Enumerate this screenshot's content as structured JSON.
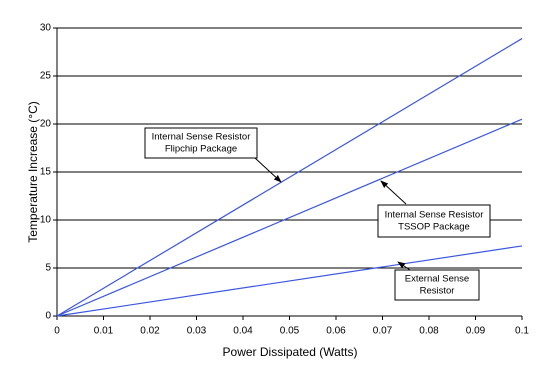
{
  "chart_data": {
    "type": "line",
    "x_label": "Power Dissipated (Watts)",
    "y_label": "Temperature Increase (°C)",
    "x": [
      0,
      0.1
    ],
    "series": [
      {
        "name": "Internal Sense Resistor Flipchip Package",
        "color": "#3a56e0",
        "values": [
          0,
          28.9
        ]
      },
      {
        "name": "Internal Sense Resistor TSSOP Package",
        "color": "#3a56e0",
        "values": [
          0,
          20.5
        ]
      },
      {
        "name": "External Sense Resistor",
        "color": "#3a56e0",
        "values": [
          0,
          7.3
        ]
      }
    ],
    "annotations": [
      [
        "Internal Sense Resistor",
        "Flipchip Package"
      ],
      [
        "Internal Sense Resistor",
        "TSSOP Package"
      ],
      [
        "External Sense",
        "Resistor"
      ]
    ],
    "xlim": [
      0,
      0.1
    ],
    "xticks": [
      0,
      0.01,
      0.02,
      0.03,
      0.04,
      0.05,
      0.06,
      0.07,
      0.08,
      0.09,
      0.1
    ],
    "ylim": [
      0,
      30
    ],
    "yticks": [
      0,
      5,
      10,
      15,
      20,
      25,
      30
    ],
    "grid": true
  }
}
